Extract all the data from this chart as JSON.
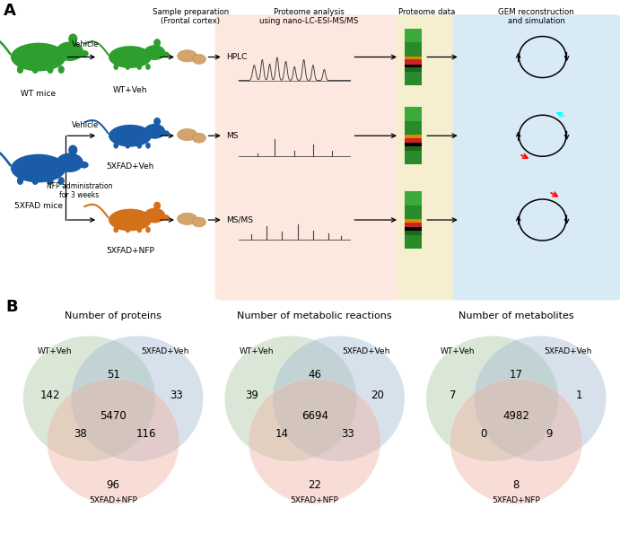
{
  "panel_a_label": "A",
  "panel_b_label": "B",
  "venn_diagrams": [
    {
      "title": "Number of proteins",
      "labels": [
        "WT+Veh",
        "5XFAD+Veh",
        "5XFAD+NFP"
      ],
      "only_a": 142,
      "only_b": 33,
      "only_c": 96,
      "ab_only": 51,
      "ac_only": 38,
      "bc_only": 116,
      "abc": 5470,
      "colors": [
        "#a8c8a0",
        "#a0b8d0",
        "#f0b0a0"
      ]
    },
    {
      "title": "Number of metabolic reactions",
      "labels": [
        "WT+Veh",
        "5XFAD+Veh",
        "5XFAD+NFP"
      ],
      "only_a": 39,
      "only_b": 20,
      "only_c": 22,
      "ab_only": 46,
      "ac_only": 14,
      "bc_only": 33,
      "abc": 6694,
      "colors": [
        "#a8c8a0",
        "#a0b8d0",
        "#f0b0a0"
      ]
    },
    {
      "title": "Number of metabolites",
      "labels": [
        "WT+Veh",
        "5XFAD+Veh",
        "5XFAD+NFP"
      ],
      "only_a": 7,
      "only_b": 1,
      "only_c": 8,
      "ab_only": 17,
      "ac_only": 0,
      "bc_only": 9,
      "abc": 4982,
      "colors": [
        "#a8c8a0",
        "#a0b8d0",
        "#f0b0a0"
      ]
    }
  ],
  "panel_a": {
    "wt_color": "#2e9e2e",
    "fad_color": "#1a5ca8",
    "nfp_color": "#d4701a",
    "pink_bg": "#fce8df",
    "yellow_bg": "#f5efd0",
    "blue_bg": "#d8eaf5"
  }
}
